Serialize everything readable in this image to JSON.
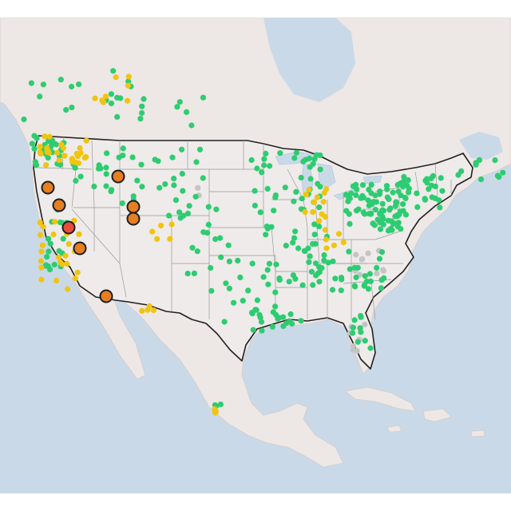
{
  "map": {
    "region": "United States",
    "colors": {
      "water": "#c9d9e8",
      "land": "#ede7e5",
      "good": "#2ecc71",
      "moderate": "#f1c40f",
      "unhealthy_sensitive": "#e67e22",
      "unhealthy": "#e74c3c",
      "no_data": "#c4c4c4"
    },
    "marker_categories": [
      "good",
      "moderate",
      "unhealthy_sensitive",
      "unhealthy",
      "no_data"
    ],
    "large_markers": [
      {
        "category": "unhealthy_sensitive"
      },
      {
        "category": "unhealthy_sensitive"
      },
      {
        "category": "unhealthy_sensitive"
      },
      {
        "category": "unhealthy_sensitive"
      },
      {
        "category": "unhealthy_sensitive"
      },
      {
        "category": "unhealthy"
      },
      {
        "category": "unhealthy_sensitive"
      },
      {
        "category": "unhealthy_sensitive"
      }
    ]
  }
}
